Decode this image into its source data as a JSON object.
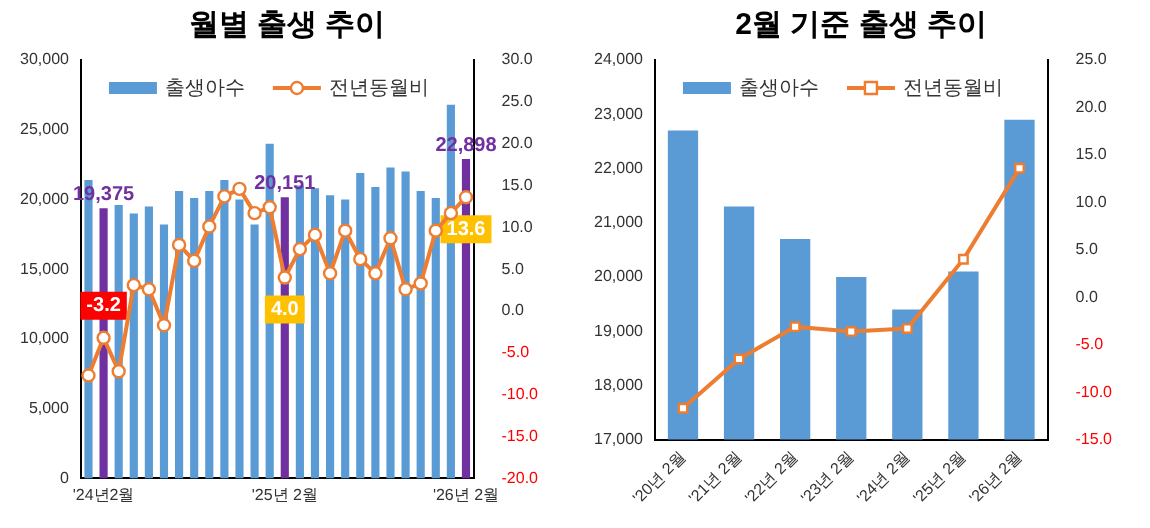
{
  "chart_data": [
    {
      "type": "bar",
      "title": "월별 출생 추이",
      "categories": [
        null,
        "'24년2월",
        null,
        null,
        null,
        null,
        null,
        null,
        null,
        null,
        null,
        null,
        null,
        "'25년 2월",
        null,
        null,
        null,
        null,
        null,
        null,
        null,
        null,
        null,
        null,
        null,
        "'26년 2월"
      ],
      "series": [
        {
          "name": "출생아수",
          "colors": [
            "#5b9bd5",
            "#7030a0",
            "#5b9bd5",
            "#5b9bd5",
            "#5b9bd5",
            "#5b9bd5",
            "#5b9bd5",
            "#5b9bd5",
            "#5b9bd5",
            "#5b9bd5",
            "#5b9bd5",
            "#5b9bd5",
            "#5b9bd5",
            "#7030a0",
            "#5b9bd5",
            "#5b9bd5",
            "#5b9bd5",
            "#5b9bd5",
            "#5b9bd5",
            "#5b9bd5",
            "#5b9bd5",
            "#5b9bd5",
            "#5b9bd5",
            "#5b9bd5",
            "#5b9bd5",
            "#7030a0"
          ],
          "values": [
            21400,
            19375,
            19600,
            19000,
            19500,
            18200,
            20600,
            20100,
            20600,
            21400,
            20000,
            18200,
            24000,
            20151,
            21000,
            20800,
            20300,
            20000,
            21900,
            20900,
            22300,
            22000,
            20600,
            20100,
            26800,
            22898
          ],
          "value_labels": [
            null,
            "19,375",
            null,
            null,
            null,
            null,
            null,
            null,
            null,
            null,
            null,
            null,
            null,
            "20,151",
            null,
            null,
            null,
            null,
            null,
            null,
            null,
            null,
            null,
            null,
            null,
            "22,898"
          ]
        },
        {
          "name": "전년동월비",
          "type": "line",
          "axis": "y2",
          "color": "#ed7d31",
          "values": [
            -7.7,
            -3.2,
            -7.2,
            3.1,
            2.6,
            -1.7,
            7.9,
            6.0,
            10.1,
            13.7,
            14.6,
            11.7,
            12.4,
            4.0,
            7.4,
            9.1,
            4.5,
            9.6,
            6.2,
            4.5,
            8.7,
            2.6,
            3.3,
            9.6,
            11.7,
            13.6
          ],
          "value_labels": [
            null,
            "-3.2",
            null,
            null,
            null,
            null,
            null,
            null,
            null,
            null,
            null,
            null,
            null,
            "4.0",
            null,
            null,
            null,
            null,
            null,
            null,
            null,
            null,
            null,
            null,
            null,
            "13.6"
          ]
        }
      ],
      "ylim": [
        0,
        30000
      ],
      "yticks": [
        {
          "value": 0,
          "label": "0"
        },
        {
          "value": 5000,
          "label": "5,000"
        },
        {
          "value": 10000,
          "label": "10,000"
        },
        {
          "value": 15000,
          "label": "15,000"
        },
        {
          "value": 20000,
          "label": "20,000"
        },
        {
          "value": 25000,
          "label": "25,000"
        },
        {
          "value": 30000,
          "label": "30,000"
        }
      ],
      "y2lim": [
        -20,
        30
      ],
      "y2ticks": [
        {
          "value": -20,
          "label": "-20.0"
        },
        {
          "value": -15,
          "label": "-15.0"
        },
        {
          "value": -10,
          "label": "-10.0"
        },
        {
          "value": -5,
          "label": "-5.0"
        },
        {
          "value": 0,
          "label": "0.0"
        },
        {
          "value": 5,
          "label": "5.0"
        },
        {
          "value": 10,
          "label": "10.0"
        },
        {
          "value": 15,
          "label": "15.0"
        },
        {
          "value": 20,
          "label": "20.0"
        },
        {
          "value": 25,
          "label": "25.0"
        },
        {
          "value": 30,
          "label": "30.0"
        }
      ],
      "legend": "top left",
      "marker": "circle",
      "grid": false
    },
    {
      "type": "bar",
      "title": "2월 기준 출생 추이",
      "categories": [
        "'20년 2월",
        "'21년 2월",
        "'22년 2월",
        "'23년 2월",
        "'24년 2월",
        "'25년 2월",
        "'26년 2월"
      ],
      "series": [
        {
          "name": "출생아수",
          "color": "#5b9bd5",
          "values": [
            22700,
            21300,
            20700,
            20000,
            19400,
            20100,
            22900
          ]
        },
        {
          "name": "전년동월비",
          "type": "line",
          "axis": "y2",
          "color": "#ed7d31",
          "values": [
            -11.7,
            -6.5,
            -3.1,
            -3.6,
            -3.3,
            4.0,
            13.6
          ]
        }
      ],
      "ylim": [
        17000,
        24000
      ],
      "yticks": [
        {
          "value": 17000,
          "label": "17,000"
        },
        {
          "value": 18000,
          "label": "18,000"
        },
        {
          "value": 19000,
          "label": "19,000"
        },
        {
          "value": 20000,
          "label": "20,000"
        },
        {
          "value": 21000,
          "label": "21,000"
        },
        {
          "value": 22000,
          "label": "22,000"
        },
        {
          "value": 23000,
          "label": "23,000"
        },
        {
          "value": 24000,
          "label": "24,000"
        }
      ],
      "y2lim": [
        -15,
        25
      ],
      "y2ticks": [
        {
          "value": -15,
          "label": "-15.0"
        },
        {
          "value": -10,
          "label": "-10.0"
        },
        {
          "value": -5,
          "label": "-5.0"
        },
        {
          "value": 0,
          "label": "0.0"
        },
        {
          "value": 5,
          "label": "5.0"
        },
        {
          "value": 10,
          "label": "10.0"
        },
        {
          "value": 15,
          "label": "15.0"
        },
        {
          "value": 20,
          "label": "20.0"
        },
        {
          "value": 25,
          "label": "25.0"
        }
      ],
      "legend": "top left",
      "marker": "square",
      "grid": false
    }
  ]
}
